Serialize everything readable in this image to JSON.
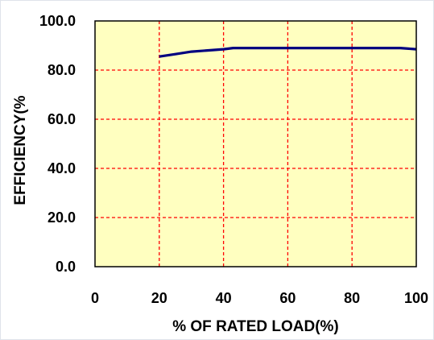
{
  "chart_data": {
    "type": "line",
    "title": "",
    "xlabel": "% OF RATED LOAD(%)",
    "ylabel": "EFFICIENCY(%",
    "xlim": [
      0,
      100
    ],
    "ylim": [
      0,
      100
    ],
    "x_ticks": [
      0,
      20,
      40,
      60,
      80,
      100
    ],
    "y_ticks": [
      0,
      20,
      40,
      60,
      80,
      100
    ],
    "x_tick_labels": [
      "0",
      "20",
      "40",
      "60",
      "80",
      "100"
    ],
    "y_tick_labels": [
      "0.0",
      "20.0",
      "40.0",
      "60.0",
      "80.0",
      "100.0"
    ],
    "grid": true,
    "legend": "none",
    "series": [
      {
        "x": [
          20,
          25,
          30,
          35,
          40,
          43,
          50,
          60,
          70,
          80,
          90,
          95,
          100
        ],
        "y": [
          85.5,
          86.5,
          87.5,
          88.0,
          88.5,
          89.0,
          89.0,
          89.0,
          89.0,
          89.0,
          89.0,
          89.0,
          88.5
        ]
      }
    ],
    "colors": {
      "plot_background": "#ffffc0",
      "grid": "#ff0000",
      "line": "#000080",
      "frame": "#000000"
    }
  }
}
